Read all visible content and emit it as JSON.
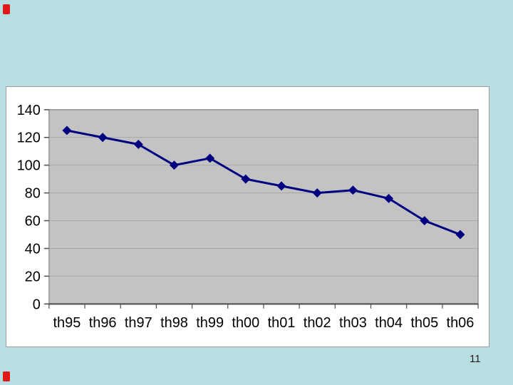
{
  "page": {
    "page_number": "11"
  },
  "colors": {
    "slide_bg": "#b9dee2",
    "chart_box_bg": "#ffffff",
    "chart_box_border": "#9c9c9c",
    "plot_bg": "#c3c3c3",
    "plot_border": "#848284",
    "gridline": "#a6a6a6",
    "axis_line": "#4d4d4d",
    "tick_mark": "#4d4d4d",
    "tick_label": "#000000",
    "series_line": "#000080",
    "red_mark": "#e01818"
  },
  "chart_data": {
    "type": "line",
    "title": "",
    "xlabel": "",
    "ylabel": "",
    "categories": [
      "th95",
      "th96",
      "th97",
      "th98",
      "th99",
      "th00",
      "th01",
      "th02",
      "th03",
      "th04",
      "th05",
      "th06"
    ],
    "values": [
      125,
      120,
      115,
      100,
      105,
      90,
      85,
      80,
      82,
      76,
      60,
      50
    ],
    "ylim": [
      0,
      140
    ],
    "yticks": [
      0,
      20,
      40,
      60,
      80,
      100,
      120,
      140
    ],
    "grid": true,
    "legend": false,
    "marker": "diamond",
    "plot_area_bg": "gray"
  }
}
